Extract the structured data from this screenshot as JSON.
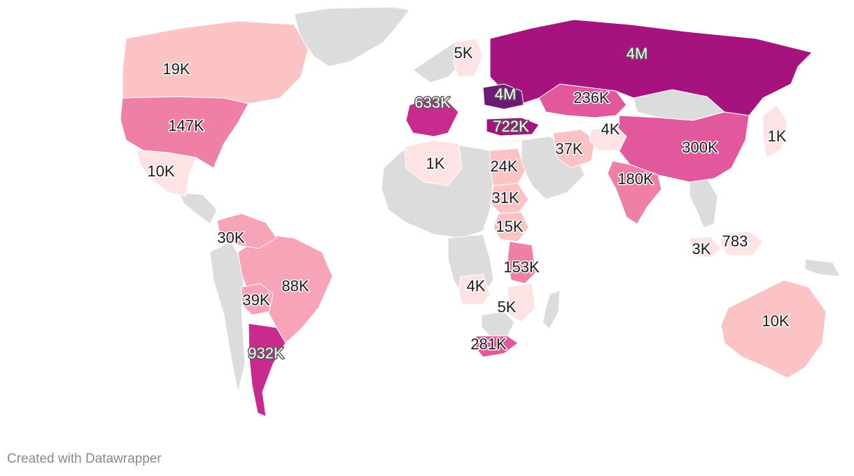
{
  "credit": "Created with Datawrapper",
  "colors": {
    "no_data": "#dcdcdc",
    "scale": [
      "#fde3e3",
      "#fbc3c3",
      "#f7a3b8",
      "#f07fa8",
      "#e1589c",
      "#c82a8e",
      "#a6137f",
      "#6e1a74"
    ]
  },
  "regions": [
    {
      "name": "Russia",
      "label": "4M",
      "color": "#a6137f",
      "dark": true
    },
    {
      "name": "Ukraine",
      "label": "4M",
      "color": "#6e1a74",
      "dark": true
    },
    {
      "name": "Argentina",
      "label": "932K",
      "color": "#c82a8e",
      "dark": true
    },
    {
      "name": "Turkey",
      "label": "722K",
      "color": "#a6137f",
      "dark": true
    },
    {
      "name": "Spain-Italy",
      "label": "633K",
      "color": "#c82a8e",
      "dark": true
    },
    {
      "name": "China",
      "label": "300K",
      "color": "#e1589c",
      "dark": false
    },
    {
      "name": "South Africa",
      "label": "281K",
      "color": "#e1589c",
      "dark": false
    },
    {
      "name": "Kazakhstan",
      "label": "236K",
      "color": "#e1589c",
      "dark": false
    },
    {
      "name": "India",
      "label": "180K",
      "color": "#f07fa8",
      "dark": false
    },
    {
      "name": "Tanzania",
      "label": "153K",
      "color": "#f07fa8",
      "dark": false
    },
    {
      "name": "United States",
      "label": "147K",
      "color": "#f07fa8",
      "dark": false
    },
    {
      "name": "Brazil",
      "label": "88K",
      "color": "#f7a3b8",
      "dark": false
    },
    {
      "name": "Bolivia",
      "label": "39K",
      "color": "#f7a3b8",
      "dark": false
    },
    {
      "name": "Iran",
      "label": "37K",
      "color": "#fbc3c3",
      "dark": false
    },
    {
      "name": "Ethiopia",
      "label": "31K",
      "color": "#fbc3c3",
      "dark": false
    },
    {
      "name": "Venezuela",
      "label": "30K",
      "color": "#f7a3b8",
      "dark": false
    },
    {
      "name": "Sudan",
      "label": "24K",
      "color": "#fbc3c3",
      "dark": false
    },
    {
      "name": "Canada",
      "label": "19K",
      "color": "#fbc3c3",
      "dark": false
    },
    {
      "name": "Kenya",
      "label": "15K",
      "color": "#fbc3c3",
      "dark": false
    },
    {
      "name": "Mexico",
      "label": "10K",
      "color": "#fde3e3",
      "dark": false
    },
    {
      "name": "Australia",
      "label": "10K",
      "color": "#fbc3c3",
      "dark": false
    },
    {
      "name": "Finland",
      "label": "5K",
      "color": "#fde3e3",
      "dark": false
    },
    {
      "name": "Mozambique",
      "label": "5K",
      "color": "#fde3e3",
      "dark": false
    },
    {
      "name": "Afghanistan",
      "label": "4K",
      "color": "#fde3e3",
      "dark": false
    },
    {
      "name": "Angola",
      "label": "4K",
      "color": "#fde3e3",
      "dark": false
    },
    {
      "name": "Malaysia",
      "label": "3K",
      "color": "#fde3e3",
      "dark": false
    },
    {
      "name": "Algeria",
      "label": "1K",
      "color": "#fde3e3",
      "dark": false
    },
    {
      "name": "Japan",
      "label": "1K",
      "color": "#fde3e3",
      "dark": false
    },
    {
      "name": "Indonesia",
      "label": "783",
      "color": "#fde3e3",
      "dark": false
    }
  ]
}
